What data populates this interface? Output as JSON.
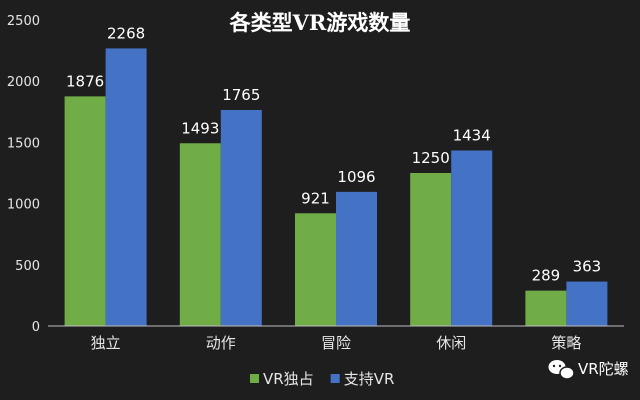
{
  "chart_data": {
    "type": "bar",
    "title": "各类型VR游戏数量",
    "categories": [
      "独立",
      "动作",
      "冒险",
      "休闲",
      "策略"
    ],
    "series": [
      {
        "name": "VR独占",
        "values": [
          1876,
          1493,
          921,
          1250,
          289
        ],
        "color": "#70ad47"
      },
      {
        "name": "支持VR",
        "values": [
          2268,
          1765,
          1096,
          1434,
          363
        ],
        "color": "#4472c4"
      }
    ],
    "yticks": [
      0,
      500,
      1000,
      1500,
      2000,
      2500
    ],
    "ylim": [
      0,
      2500
    ],
    "xlabel": "",
    "ylabel": "",
    "legend_position": "bottom",
    "grid": false,
    "data_labels": true,
    "background_color": "#1e1e1e",
    "axis_color": "#bfbfbf",
    "text_color": "#e6e6e6"
  },
  "watermark": {
    "text": "VR陀螺",
    "icon": "wechat-icon"
  }
}
